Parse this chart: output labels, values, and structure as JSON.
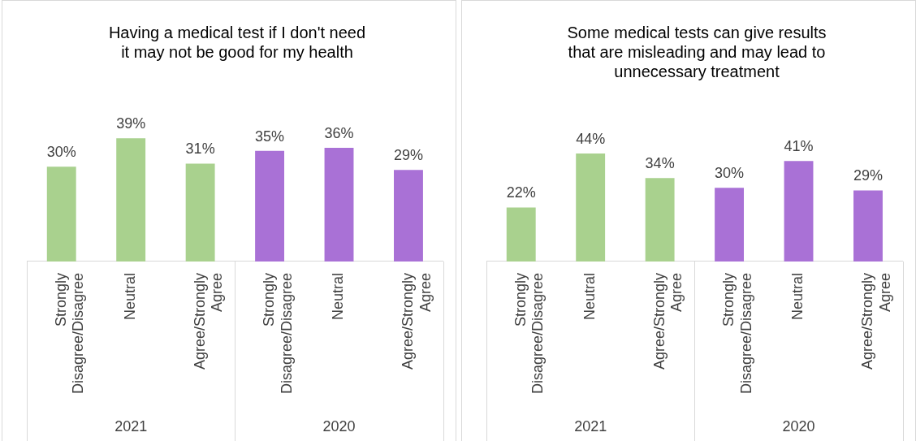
{
  "chart_data": [
    {
      "type": "bar",
      "title": "Having a medical test if I don't need it may not be good for my health",
      "categories": [
        "Strongly Disagree/Disagree",
        "Neutral",
        "Agree/Strongly Agree",
        "Strongly Disagree/Disagree",
        "Neutral",
        "Agree/Strongly Agree"
      ],
      "values": [
        30,
        39,
        31,
        35,
        36,
        29
      ],
      "colors": [
        "#a9d18e",
        "#a9d18e",
        "#a9d18e",
        "#a971d6",
        "#a971d6",
        "#a971d6"
      ],
      "value_labels": [
        "30%",
        "39%",
        "31%",
        "35%",
        "36%",
        "29%"
      ],
      "annotations": [
        "2021",
        "2020"
      ],
      "legend": false,
      "grid": false
    },
    {
      "type": "bar",
      "title": "Some medical tests can give results that are misleading and may lead to unnecessary treatment",
      "categories": [
        "Strongly Disagree/Disagree",
        "Neutral",
        "Agree/Strongly Agree",
        "Strongly Disagree/Disagree",
        "Neutral",
        "Agree/Strongly Agree"
      ],
      "values": [
        22,
        44,
        34,
        30,
        41,
        29
      ],
      "colors": [
        "#a9d18e",
        "#a9d18e",
        "#a9d18e",
        "#a971d6",
        "#a971d6",
        "#a971d6"
      ],
      "value_labels": [
        "22%",
        "44%",
        "34%",
        "30%",
        "41%",
        "29%"
      ],
      "annotations": [
        "2021",
        "2020"
      ],
      "legend": false,
      "grid": false
    }
  ]
}
